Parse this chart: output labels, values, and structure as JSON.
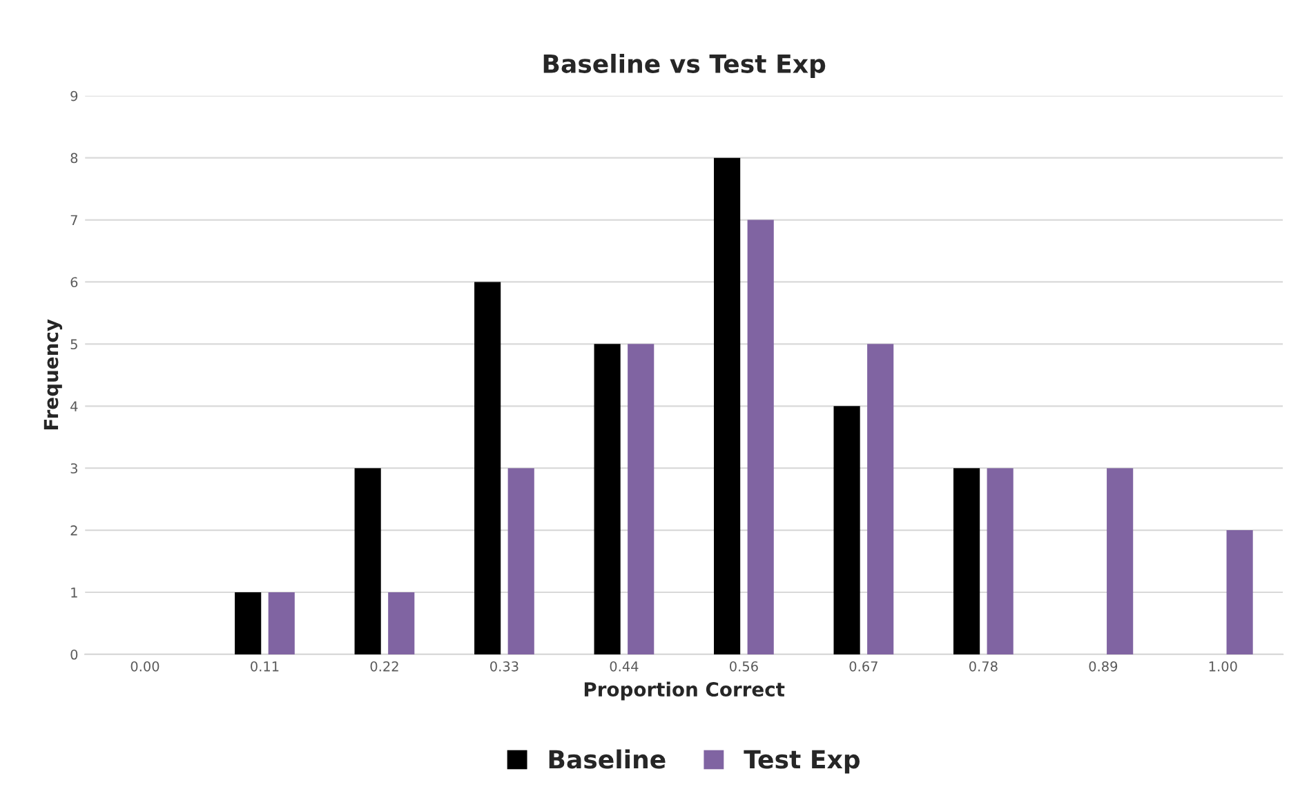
{
  "chart_data": {
    "type": "bar",
    "title": "Baseline vs Test Exp",
    "xlabel": "Proportion Correct",
    "ylabel": "Frequency",
    "categories": [
      "0.00",
      "0.11",
      "0.22",
      "0.33",
      "0.44",
      "0.56",
      "0.67",
      "0.78",
      "0.89",
      "1.00"
    ],
    "series": [
      {
        "name": "Baseline",
        "color": "#000000",
        "values": [
          0,
          1,
          3,
          6,
          5,
          8,
          4,
          3,
          0,
          0
        ]
      },
      {
        "name": "Test Exp",
        "color": "#8064a2",
        "values": [
          0,
          1,
          1,
          3,
          5,
          7,
          5,
          3,
          3,
          2
        ]
      }
    ],
    "ylim": [
      0,
      9
    ],
    "yticks": [
      0,
      1,
      2,
      3,
      4,
      5,
      6,
      7,
      8,
      9
    ],
    "grid": "y",
    "legend": "bottom"
  }
}
